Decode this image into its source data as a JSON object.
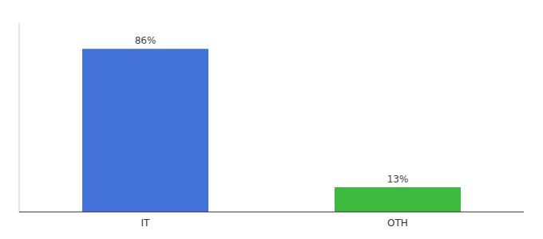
{
  "chart_data": {
    "type": "bar",
    "categories": [
      "IT",
      "OTH"
    ],
    "values": [
      86,
      13
    ],
    "value_labels": [
      "86%",
      "13%"
    ],
    "colors": [
      "#4472db",
      "#3dba3d"
    ],
    "ylim": [
      0,
      100
    ],
    "data_labels": true,
    "tick_labels": "x",
    "grid": false
  }
}
